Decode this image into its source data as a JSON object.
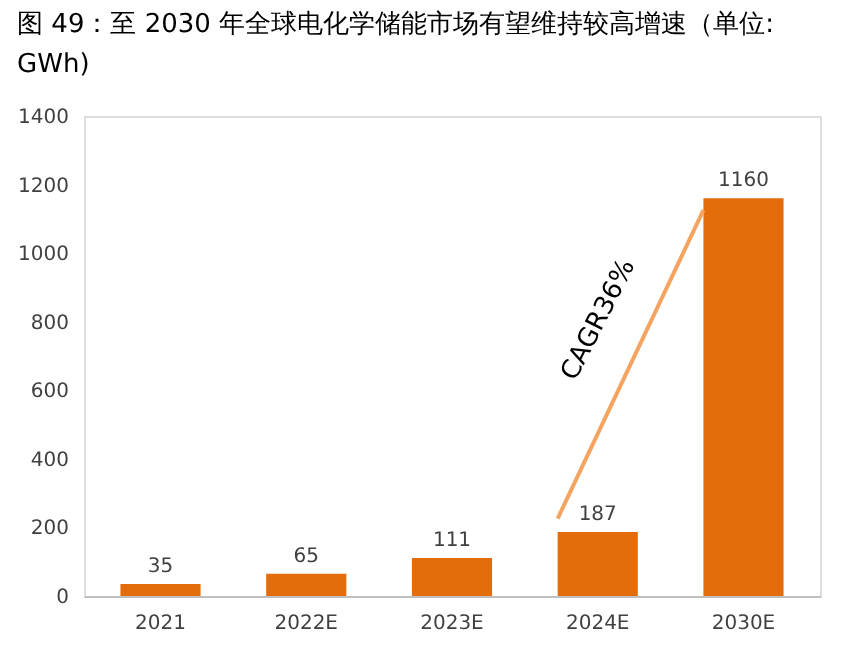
{
  "chart_data": {
    "type": "bar",
    "title": "图 49：至 2030 年全球电化学储能市场有望维持较高增速（单位: GWh)",
    "categories": [
      "2021",
      "2022E",
      "2023E",
      "2024E",
      "2030E"
    ],
    "values": [
      35,
      65,
      111,
      187,
      1160
    ],
    "color": "#e46c0a",
    "ylim": [
      0,
      1400
    ],
    "yticks": [
      0,
      200,
      400,
      600,
      800,
      1000,
      1200,
      1400
    ],
    "data_labels": true,
    "grid": false,
    "annotations": [
      "CAGR36%"
    ]
  }
}
